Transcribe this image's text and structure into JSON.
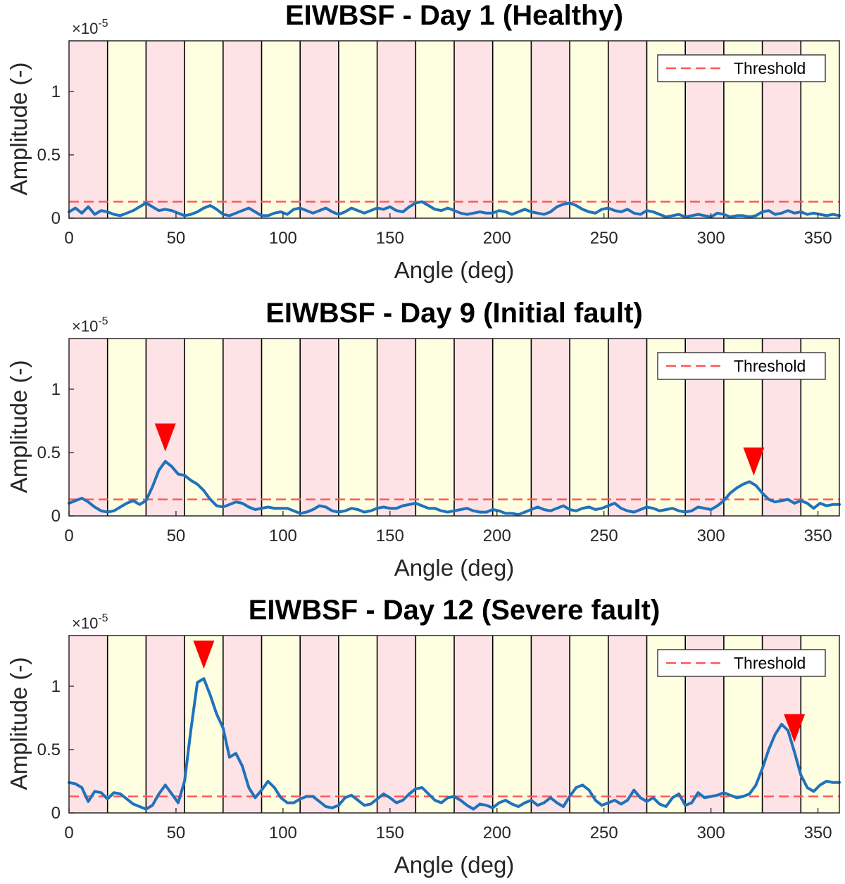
{
  "chart_data": [
    {
      "type": "line",
      "title": "EIWBSF - Day 1 (Healthy)",
      "xlabel": "Angle (deg)",
      "ylabel": "Amplitude (-)",
      "y_exponent_base": "×10",
      "y_exponent_power": "-5",
      "xlim": [
        0,
        360
      ],
      "ylim": [
        0,
        1.4
      ],
      "xticks": [
        "0",
        "50",
        "100",
        "150",
        "200",
        "250",
        "300",
        "350"
      ],
      "yticks": [
        "0",
        "0.5",
        "1"
      ],
      "sector_width_deg": 18,
      "sector_colors": [
        "#fde2e6",
        "#fefee0"
      ],
      "threshold": 0.13,
      "threshold_color": "#ff5555",
      "line_color": "#1f72bb",
      "legend": {
        "label": "Threshold",
        "position": "top-right"
      },
      "marker_color": "#ff0000",
      "markers_x": [],
      "series": [
        {
          "x": [
            0,
            3,
            6,
            9,
            12,
            15,
            18,
            21,
            24,
            27,
            30,
            33,
            36,
            39,
            42,
            45,
            48,
            51,
            54,
            57,
            60,
            63,
            66,
            69,
            72,
            75,
            78,
            81,
            84,
            87,
            90,
            93,
            96,
            99,
            102,
            105,
            108,
            111,
            114,
            117,
            120,
            123,
            126,
            129,
            132,
            135,
            138,
            141,
            144,
            147,
            150,
            153,
            156,
            159,
            162,
            165,
            168,
            171,
            174,
            177,
            180,
            183,
            186,
            189,
            192,
            195,
            198,
            201,
            204,
            207,
            210,
            213,
            216,
            219,
            222,
            225,
            228,
            231,
            234,
            237,
            240,
            243,
            246,
            249,
            252,
            255,
            258,
            261,
            264,
            267,
            270,
            273,
            276,
            279,
            282,
            285,
            288,
            291,
            294,
            297,
            300,
            303,
            306,
            309,
            312,
            315,
            318,
            321,
            324,
            327,
            330,
            333,
            336,
            339,
            342,
            345,
            348,
            351,
            354,
            357,
            360
          ],
          "values": [
            0.05,
            0.08,
            0.04,
            0.09,
            0.03,
            0.06,
            0.05,
            0.03,
            0.02,
            0.04,
            0.06,
            0.09,
            0.12,
            0.09,
            0.06,
            0.07,
            0.06,
            0.04,
            0.02,
            0.03,
            0.05,
            0.08,
            0.1,
            0.07,
            0.03,
            0.02,
            0.04,
            0.06,
            0.08,
            0.05,
            0.02,
            0.02,
            0.04,
            0.05,
            0.03,
            0.07,
            0.08,
            0.06,
            0.04,
            0.06,
            0.08,
            0.05,
            0.03,
            0.05,
            0.08,
            0.06,
            0.04,
            0.06,
            0.08,
            0.07,
            0.09,
            0.06,
            0.05,
            0.09,
            0.12,
            0.13,
            0.1,
            0.07,
            0.06,
            0.08,
            0.06,
            0.04,
            0.03,
            0.04,
            0.05,
            0.04,
            0.04,
            0.06,
            0.05,
            0.03,
            0.05,
            0.07,
            0.05,
            0.04,
            0.03,
            0.05,
            0.09,
            0.11,
            0.12,
            0.1,
            0.07,
            0.05,
            0.04,
            0.07,
            0.08,
            0.06,
            0.05,
            0.07,
            0.04,
            0.03,
            0.06,
            0.05,
            0.03,
            0.01,
            0.02,
            0.03,
            0.01,
            0.02,
            0.03,
            0.02,
            0.01,
            0.04,
            0.03,
            0.01,
            0.02,
            0.02,
            0.01,
            0.02,
            0.05,
            0.06,
            0.03,
            0.04,
            0.06,
            0.04,
            0.05,
            0.03,
            0.04,
            0.03,
            0.02,
            0.03,
            0.02
          ]
        }
      ]
    },
    {
      "type": "line",
      "title": "EIWBSF - Day 9 (Initial fault)",
      "xlabel": "Angle (deg)",
      "ylabel": "Amplitude (-)",
      "y_exponent_base": "×10",
      "y_exponent_power": "-5",
      "xlim": [
        0,
        360
      ],
      "ylim": [
        0,
        1.4
      ],
      "xticks": [
        "0",
        "50",
        "100",
        "150",
        "200",
        "250",
        "300",
        "350"
      ],
      "yticks": [
        "0",
        "0.5",
        "1"
      ],
      "sector_width_deg": 18,
      "sector_colors": [
        "#fde2e6",
        "#fefee0"
      ],
      "threshold": 0.13,
      "threshold_color": "#ff5555",
      "line_color": "#1f72bb",
      "legend": {
        "label": "Threshold",
        "position": "top-right"
      },
      "marker_color": "#ff0000",
      "markers_x": [
        45,
        320
      ],
      "series": [
        {
          "x": [
            0,
            3,
            6,
            9,
            12,
            15,
            18,
            21,
            24,
            27,
            30,
            33,
            36,
            39,
            42,
            45,
            48,
            51,
            54,
            57,
            60,
            63,
            66,
            69,
            72,
            75,
            78,
            81,
            84,
            87,
            90,
            93,
            96,
            99,
            102,
            105,
            108,
            111,
            114,
            117,
            120,
            123,
            126,
            129,
            132,
            135,
            138,
            141,
            144,
            147,
            150,
            153,
            156,
            159,
            162,
            165,
            168,
            171,
            174,
            177,
            180,
            183,
            186,
            189,
            192,
            195,
            198,
            201,
            204,
            207,
            210,
            213,
            216,
            219,
            222,
            225,
            228,
            231,
            234,
            237,
            240,
            243,
            246,
            249,
            252,
            255,
            258,
            261,
            264,
            267,
            270,
            273,
            276,
            279,
            282,
            285,
            288,
            291,
            294,
            297,
            300,
            303,
            306,
            309,
            312,
            315,
            318,
            321,
            324,
            327,
            330,
            333,
            336,
            339,
            342,
            345,
            348,
            351,
            354,
            357,
            360
          ],
          "values": [
            0.1,
            0.12,
            0.14,
            0.11,
            0.07,
            0.04,
            0.03,
            0.04,
            0.07,
            0.1,
            0.12,
            0.09,
            0.12,
            0.23,
            0.36,
            0.43,
            0.39,
            0.33,
            0.32,
            0.28,
            0.25,
            0.2,
            0.13,
            0.08,
            0.07,
            0.09,
            0.11,
            0.1,
            0.07,
            0.05,
            0.06,
            0.07,
            0.06,
            0.06,
            0.06,
            0.04,
            0.02,
            0.03,
            0.05,
            0.08,
            0.07,
            0.04,
            0.03,
            0.04,
            0.06,
            0.05,
            0.03,
            0.04,
            0.06,
            0.07,
            0.06,
            0.06,
            0.08,
            0.09,
            0.1,
            0.08,
            0.06,
            0.06,
            0.04,
            0.03,
            0.04,
            0.05,
            0.06,
            0.04,
            0.03,
            0.03,
            0.05,
            0.04,
            0.02,
            0.02,
            0.01,
            0.03,
            0.05,
            0.07,
            0.05,
            0.04,
            0.06,
            0.08,
            0.05,
            0.04,
            0.06,
            0.07,
            0.05,
            0.06,
            0.08,
            0.1,
            0.06,
            0.04,
            0.03,
            0.05,
            0.07,
            0.06,
            0.04,
            0.05,
            0.06,
            0.04,
            0.03,
            0.04,
            0.07,
            0.06,
            0.05,
            0.08,
            0.12,
            0.18,
            0.22,
            0.25,
            0.27,
            0.24,
            0.18,
            0.13,
            0.11,
            0.12,
            0.13,
            0.1,
            0.12,
            0.1,
            0.06,
            0.1,
            0.08,
            0.09,
            0.09
          ]
        }
      ]
    },
    {
      "type": "line",
      "title": "EIWBSF - Day 12 (Severe fault)",
      "xlabel": "Angle (deg)",
      "ylabel": "Amplitude (-)",
      "y_exponent_base": "×10",
      "y_exponent_power": "-5",
      "xlim": [
        0,
        360
      ],
      "ylim": [
        0,
        1.4
      ],
      "xticks": [
        "0",
        "50",
        "100",
        "150",
        "200",
        "250",
        "300",
        "350"
      ],
      "yticks": [
        "0",
        "0.5",
        "1"
      ],
      "sector_width_deg": 18,
      "sector_colors": [
        "#fde2e6",
        "#fefee0"
      ],
      "threshold": 0.13,
      "threshold_color": "#ff5555",
      "line_color": "#1f72bb",
      "legend": {
        "label": "Threshold",
        "position": "top-right"
      },
      "marker_color": "#ff0000",
      "markers_x": [
        63,
        339
      ],
      "series": [
        {
          "x": [
            0,
            3,
            6,
            9,
            12,
            15,
            18,
            21,
            24,
            27,
            30,
            33,
            36,
            39,
            42,
            45,
            48,
            51,
            54,
            57,
            60,
            63,
            66,
            69,
            72,
            75,
            78,
            81,
            84,
            87,
            90,
            93,
            96,
            99,
            102,
            105,
            108,
            111,
            114,
            117,
            120,
            123,
            126,
            129,
            132,
            135,
            138,
            141,
            144,
            147,
            150,
            153,
            156,
            159,
            162,
            165,
            168,
            171,
            174,
            177,
            180,
            183,
            186,
            189,
            192,
            195,
            198,
            201,
            204,
            207,
            210,
            213,
            216,
            219,
            222,
            225,
            228,
            231,
            234,
            237,
            240,
            243,
            246,
            249,
            252,
            255,
            258,
            261,
            264,
            267,
            270,
            273,
            276,
            279,
            282,
            285,
            288,
            291,
            294,
            297,
            300,
            303,
            306,
            309,
            312,
            315,
            318,
            321,
            324,
            327,
            330,
            333,
            336,
            339,
            342,
            345,
            348,
            351,
            354,
            357,
            360
          ],
          "values": [
            0.24,
            0.23,
            0.2,
            0.09,
            0.17,
            0.16,
            0.11,
            0.16,
            0.15,
            0.11,
            0.07,
            0.05,
            0.03,
            0.06,
            0.15,
            0.22,
            0.15,
            0.08,
            0.25,
            0.66,
            1.03,
            1.06,
            0.93,
            0.78,
            0.67,
            0.44,
            0.47,
            0.37,
            0.2,
            0.12,
            0.18,
            0.25,
            0.2,
            0.12,
            0.08,
            0.08,
            0.11,
            0.13,
            0.13,
            0.09,
            0.05,
            0.04,
            0.06,
            0.12,
            0.14,
            0.1,
            0.06,
            0.07,
            0.11,
            0.15,
            0.12,
            0.08,
            0.1,
            0.15,
            0.19,
            0.2,
            0.15,
            0.1,
            0.08,
            0.12,
            0.13,
            0.1,
            0.06,
            0.03,
            0.07,
            0.06,
            0.04,
            0.08,
            0.1,
            0.07,
            0.05,
            0.08,
            0.1,
            0.06,
            0.08,
            0.12,
            0.08,
            0.05,
            0.13,
            0.2,
            0.22,
            0.18,
            0.1,
            0.06,
            0.08,
            0.1,
            0.07,
            0.1,
            0.18,
            0.12,
            0.09,
            0.12,
            0.07,
            0.05,
            0.12,
            0.15,
            0.06,
            0.08,
            0.16,
            0.12,
            0.13,
            0.14,
            0.16,
            0.14,
            0.12,
            0.13,
            0.15,
            0.22,
            0.35,
            0.5,
            0.62,
            0.7,
            0.65,
            0.48,
            0.3,
            0.2,
            0.17,
            0.22,
            0.25,
            0.24,
            0.24
          ]
        }
      ]
    }
  ]
}
